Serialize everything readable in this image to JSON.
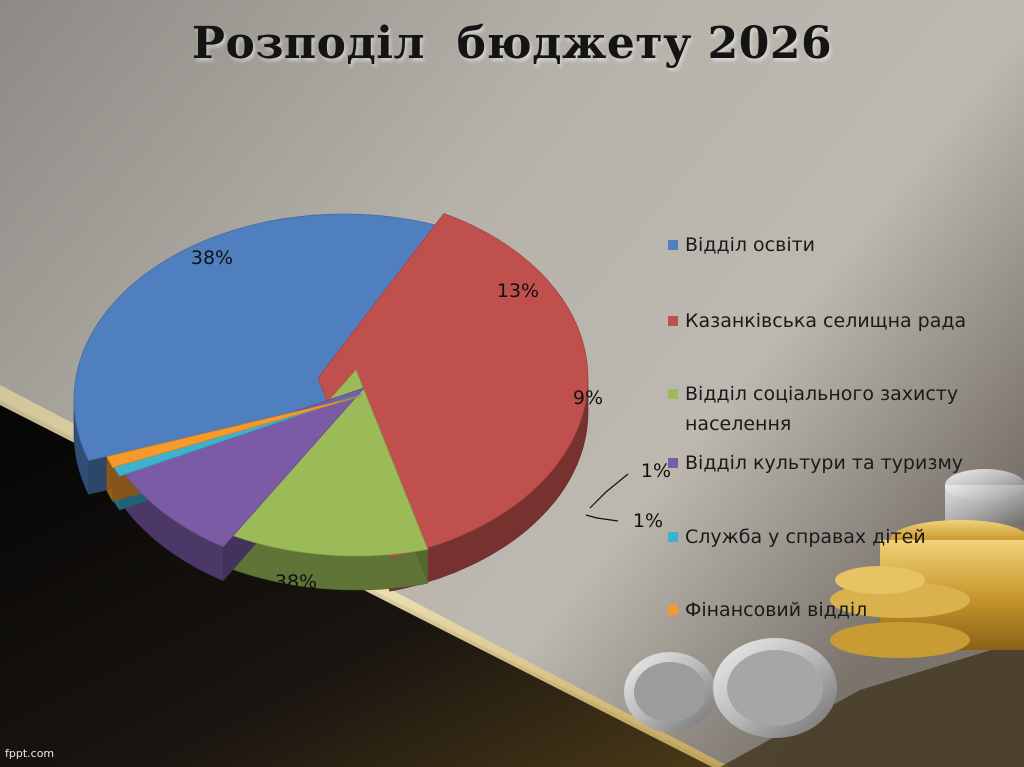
{
  "title": "Розподіл  бюджету 2026",
  "watermark": "fppt.com",
  "chart_data": {
    "type": "pie",
    "title": "Розподіл  бюджету 2026",
    "slices": [
      {
        "name": "Відділ освіти",
        "value": 38,
        "label": "38%",
        "color": "#4f7fbf"
      },
      {
        "name": "Казанківська селищна рада",
        "value": 38,
        "label": "38%",
        "color": "#c0504d"
      },
      {
        "name": "Відділ соціального захисту населення",
        "value": 13,
        "label": "13%",
        "color": "#9bbb59"
      },
      {
        "name": "Відділ культури та туризму",
        "value": 9,
        "label": "9%",
        "color": "#7b5aa6"
      },
      {
        "name": "Служба у справах дітей",
        "value": 1,
        "label": "1%",
        "color": "#3bb3cf"
      },
      {
        "name": "Фінансовий відділ",
        "value": 1,
        "label": "1%",
        "color": "#f59a2e"
      }
    ],
    "legend_position": "right"
  }
}
